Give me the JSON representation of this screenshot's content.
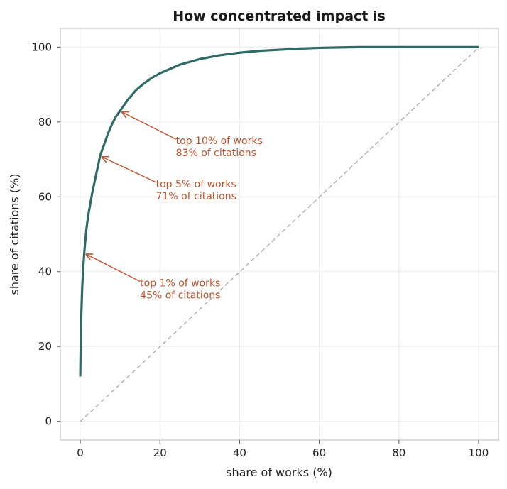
{
  "chart_data": {
    "type": "line",
    "title": "How concentrated impact is",
    "xlabel": "share of works (%)",
    "ylabel": "share of citations (%)",
    "xlim": [
      -5,
      105
    ],
    "ylim": [
      -5,
      105
    ],
    "xticks": [
      0,
      20,
      40,
      60,
      80,
      100
    ],
    "yticks": [
      0,
      20,
      40,
      60,
      80,
      100
    ],
    "grid": true,
    "colors": {
      "curve": "#2e6b65",
      "diagonal": "#b3b3b3",
      "annotation": "#c0532f",
      "grid": "#ececec",
      "frame": "#bdbdbd"
    },
    "series": [
      {
        "x": [
          0,
          0.1,
          0.25,
          0.5,
          0.75,
          1,
          1.5,
          2,
          3,
          4,
          5,
          6,
          7,
          8,
          9,
          10,
          12,
          14,
          16,
          18,
          20,
          25,
          30,
          35,
          40,
          45,
          50,
          55,
          60,
          65,
          70,
          75,
          80,
          85,
          90,
          95,
          100
        ],
        "y": [
          12,
          20,
          28,
          36,
          41,
          45,
          51,
          55,
          61,
          66,
          71,
          74,
          77,
          79.5,
          81.5,
          83,
          86,
          88.5,
          90.3,
          91.8,
          93,
          95.3,
          96.8,
          97.8,
          98.5,
          99,
          99.3,
          99.6,
          99.8,
          99.9,
          100,
          100,
          100,
          100,
          100,
          100,
          100
        ]
      },
      {
        "x": [
          0,
          100
        ],
        "y": [
          0,
          100
        ]
      }
    ],
    "annotations": [
      {
        "line1": "top 10% of works",
        "line2": "83% of citations",
        "point": [
          10,
          83
        ],
        "text_at": [
          24,
          75
        ]
      },
      {
        "line1": "top 5% of works",
        "line2": "71% of citations",
        "point": [
          5,
          71
        ],
        "text_at": [
          19,
          63.5
        ]
      },
      {
        "line1": "top 1% of works",
        "line2": "45% of citations",
        "point": [
          1,
          45
        ],
        "text_at": [
          15,
          37
        ]
      }
    ]
  }
}
